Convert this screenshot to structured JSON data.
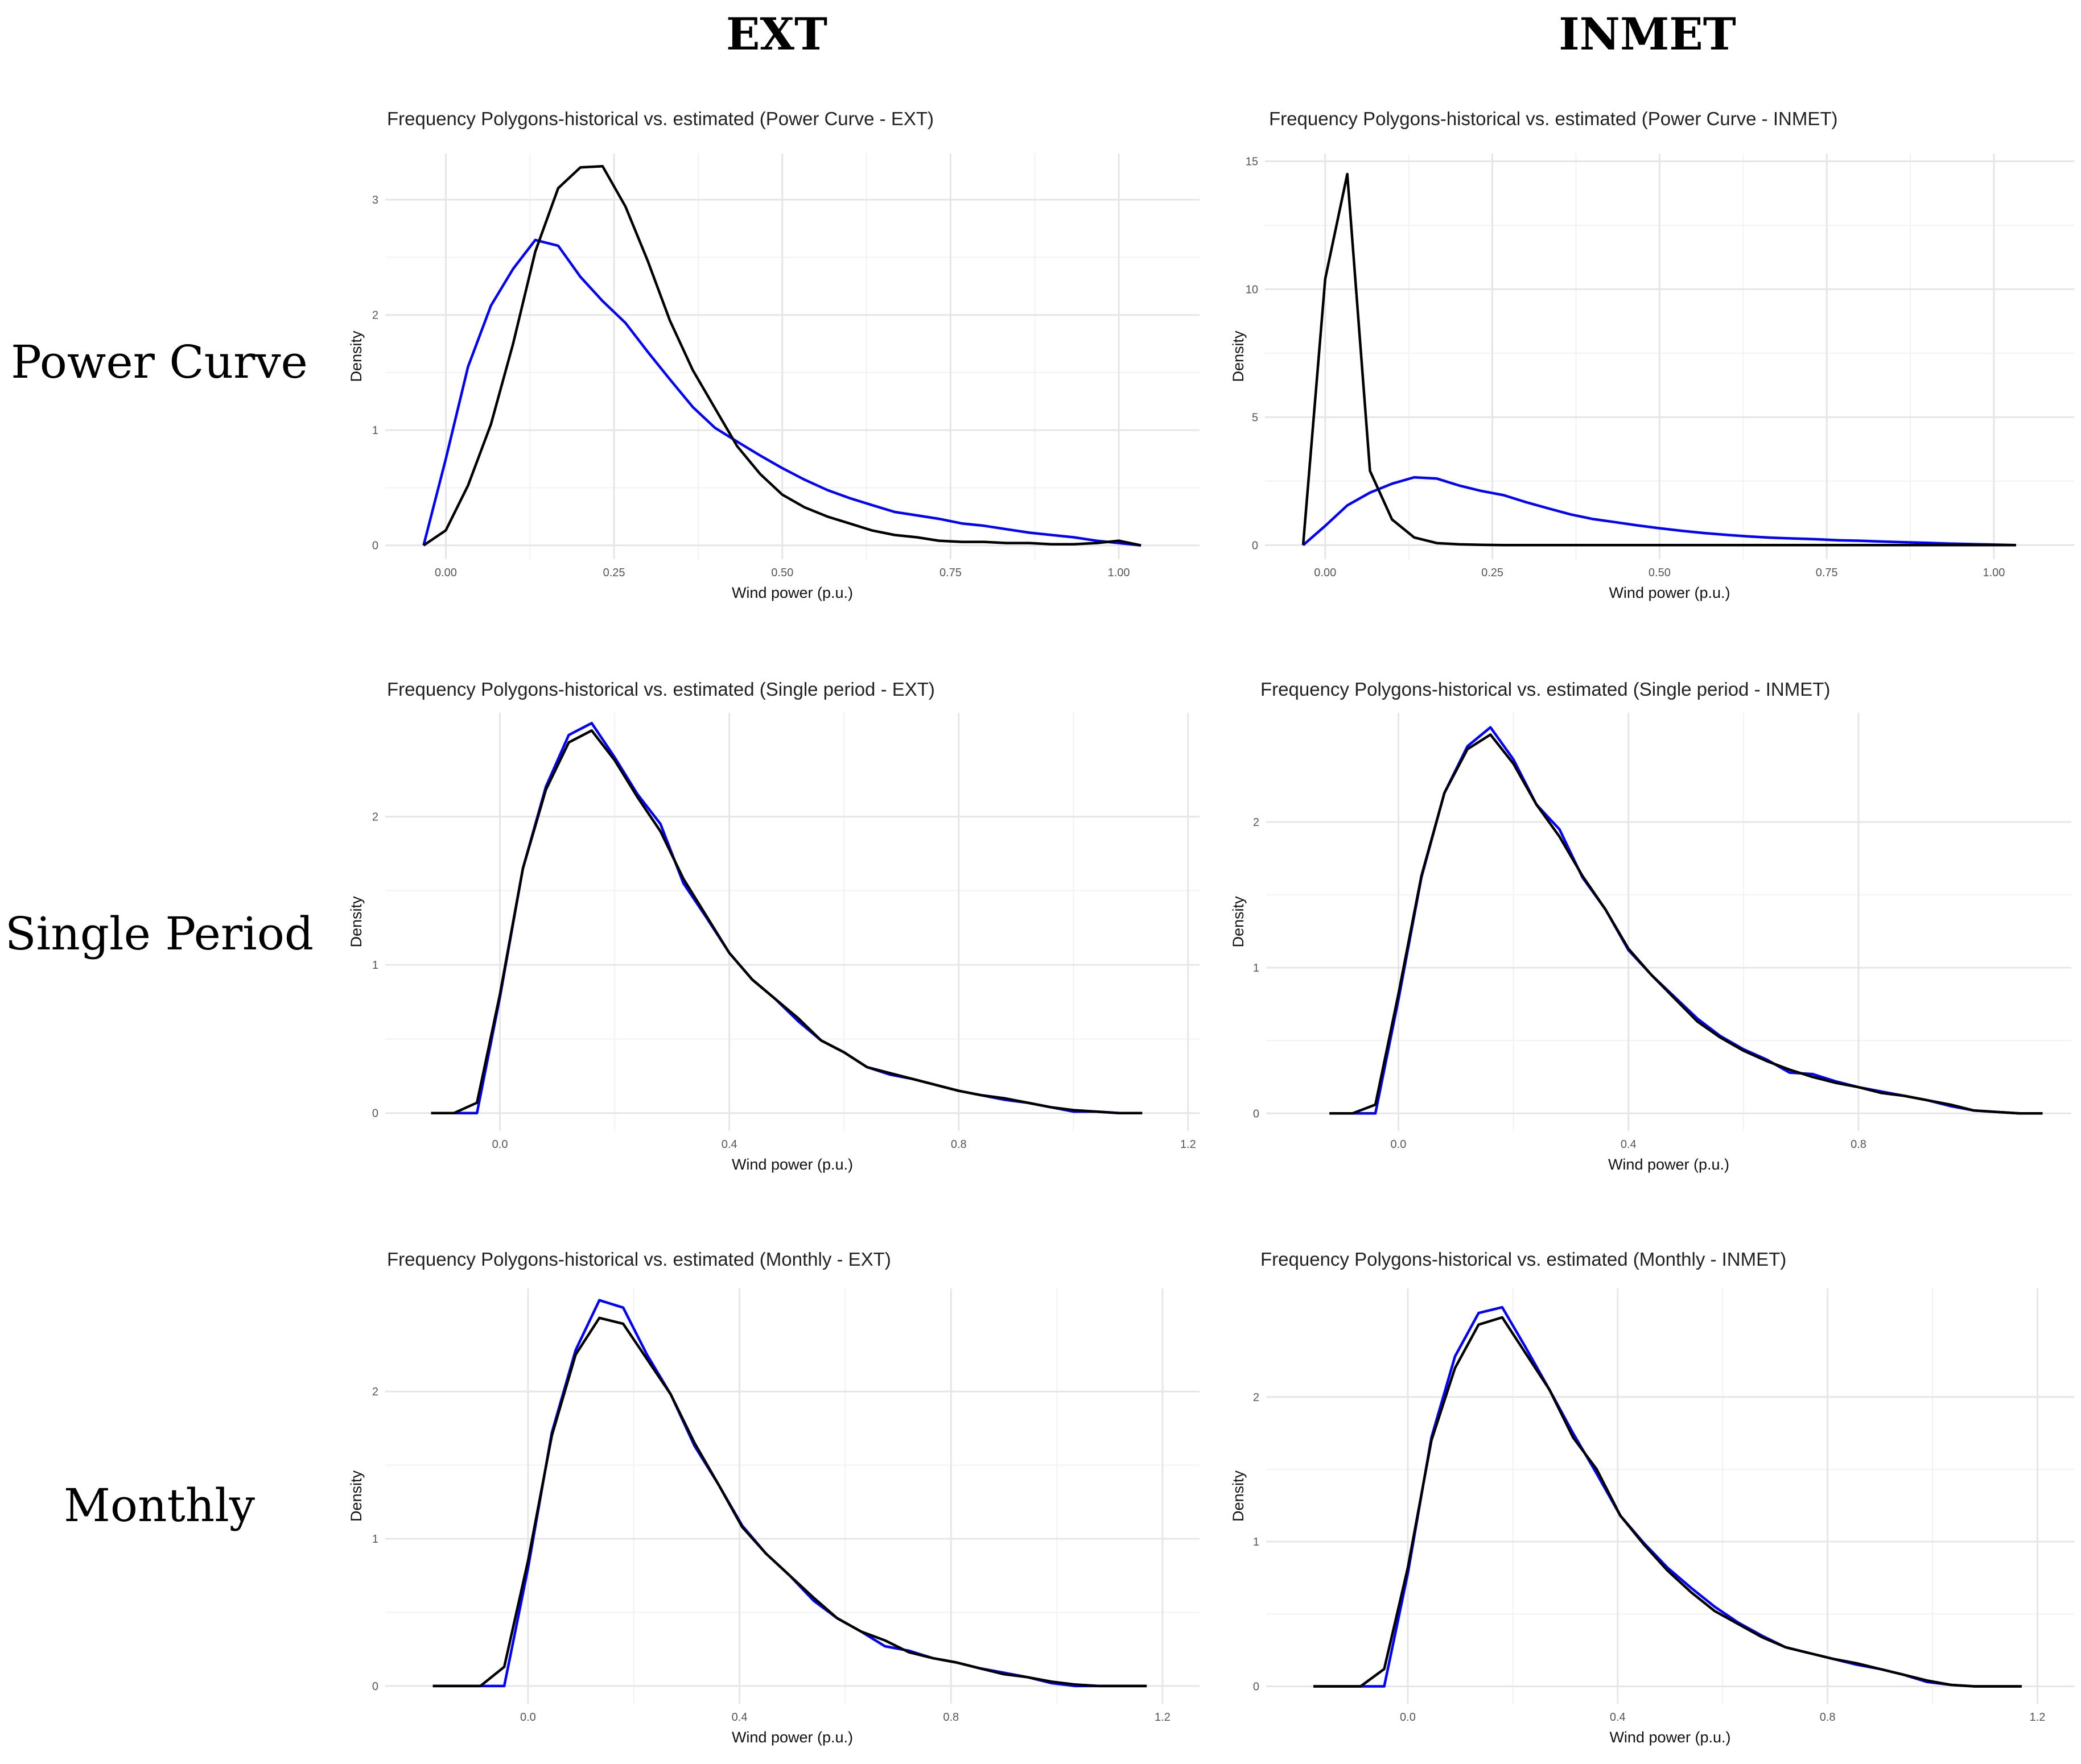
{
  "columns": [
    "EXT",
    "INMET"
  ],
  "rows": [
    "Power Curve",
    "Single Period",
    "Monthly"
  ],
  "colors": {
    "historical": "#000000",
    "estimated": "#0000ff",
    "grid": "#e6e6e6",
    "background": "#ffffff"
  },
  "chart_data": [
    {
      "type": "line",
      "title": "Frequency Polygons-historical vs. estimated (Power Curve - EXT)",
      "xlabel": "Wind power (p.u.)",
      "ylabel": "Density",
      "xlim": [
        -0.09,
        1.12
      ],
      "ylim": [
        -0.12,
        3.4
      ],
      "xticks": [
        0,
        0.25,
        0.5,
        0.75,
        1.0
      ],
      "xtick_labels": [
        "0.00",
        "0.25",
        "0.50",
        "0.75",
        "1.00"
      ],
      "yticks": [
        0,
        1,
        2,
        3
      ],
      "ytick_labels": [
        "0",
        "1",
        "2",
        "3"
      ],
      "series": [
        {
          "name": "estimated",
          "color": "#0000ff",
          "x": [
            -0.033,
            0.0,
            0.033,
            0.067,
            0.1,
            0.133,
            0.167,
            0.2,
            0.233,
            0.267,
            0.3,
            0.333,
            0.367,
            0.4,
            0.433,
            0.467,
            0.5,
            0.533,
            0.567,
            0.6,
            0.633,
            0.667,
            0.7,
            0.733,
            0.767,
            0.8,
            0.833,
            0.867,
            0.9,
            0.933,
            0.967,
            1.0,
            1.033
          ],
          "y": [
            0.0,
            0.75,
            1.55,
            2.08,
            2.4,
            2.65,
            2.6,
            2.33,
            2.12,
            1.93,
            1.68,
            1.44,
            1.2,
            1.02,
            0.9,
            0.78,
            0.67,
            0.57,
            0.48,
            0.41,
            0.35,
            0.29,
            0.26,
            0.23,
            0.19,
            0.17,
            0.14,
            0.11,
            0.09,
            0.07,
            0.04,
            0.02,
            0.0
          ]
        },
        {
          "name": "historical",
          "color": "#000000",
          "x": [
            -0.033,
            0.0,
            0.033,
            0.067,
            0.1,
            0.133,
            0.167,
            0.2,
            0.233,
            0.267,
            0.3,
            0.333,
            0.367,
            0.4,
            0.433,
            0.467,
            0.5,
            0.533,
            0.567,
            0.6,
            0.633,
            0.667,
            0.7,
            0.733,
            0.767,
            0.8,
            0.833,
            0.867,
            0.9,
            0.933,
            0.967,
            1.0,
            1.033
          ],
          "y": [
            0.0,
            0.13,
            0.52,
            1.05,
            1.75,
            2.55,
            3.1,
            3.28,
            3.29,
            2.94,
            2.47,
            1.95,
            1.52,
            1.19,
            0.86,
            0.62,
            0.44,
            0.33,
            0.25,
            0.19,
            0.13,
            0.09,
            0.07,
            0.04,
            0.03,
            0.03,
            0.02,
            0.02,
            0.01,
            0.01,
            0.02,
            0.04,
            0.0
          ]
        }
      ]
    },
    {
      "type": "line",
      "title": "Frequency Polygons-historical vs. estimated (Power Curve - INMET)",
      "xlabel": "Wind power (p.u.)",
      "ylabel": "Density",
      "xlim": [
        -0.09,
        1.12
      ],
      "ylim": [
        -0.55,
        15.3
      ],
      "xticks": [
        0,
        0.25,
        0.5,
        0.75,
        1.0
      ],
      "xtick_labels": [
        "0.00",
        "0.25",
        "0.50",
        "0.75",
        "1.00"
      ],
      "yticks": [
        0,
        5,
        10,
        15
      ],
      "ytick_labels": [
        "0",
        "5",
        "10",
        "15"
      ],
      "series": [
        {
          "name": "estimated",
          "color": "#0000ff",
          "x": [
            -0.033,
            0.0,
            0.033,
            0.067,
            0.1,
            0.133,
            0.167,
            0.2,
            0.233,
            0.267,
            0.3,
            0.333,
            0.367,
            0.4,
            0.433,
            0.467,
            0.5,
            0.533,
            0.567,
            0.6,
            0.633,
            0.667,
            0.7,
            0.733,
            0.767,
            0.8,
            0.833,
            0.867,
            0.9,
            0.933,
            0.967,
            1.0,
            1.033
          ],
          "y": [
            0.0,
            0.75,
            1.55,
            2.05,
            2.4,
            2.65,
            2.6,
            2.33,
            2.12,
            1.95,
            1.68,
            1.44,
            1.2,
            1.02,
            0.9,
            0.77,
            0.66,
            0.56,
            0.47,
            0.4,
            0.34,
            0.29,
            0.26,
            0.23,
            0.19,
            0.17,
            0.14,
            0.11,
            0.09,
            0.06,
            0.04,
            0.02,
            0.0
          ]
        },
        {
          "name": "historical",
          "color": "#000000",
          "x": [
            -0.033,
            0.0,
            0.033,
            0.067,
            0.1,
            0.133,
            0.167,
            0.2,
            0.233,
            0.267,
            0.3,
            0.333,
            0.367,
            0.4,
            0.433,
            0.467,
            0.5,
            0.533,
            0.567,
            0.6,
            0.633,
            0.667,
            0.7,
            0.733,
            0.767,
            0.8,
            0.833,
            0.867,
            0.9,
            0.933,
            0.967,
            1.0,
            1.033
          ],
          "y": [
            0.0,
            10.4,
            14.5,
            2.9,
            1.0,
            0.3,
            0.08,
            0.03,
            0.01,
            0.0,
            0.0,
            0.0,
            0.0,
            0.0,
            0.0,
            0.0,
            0.0,
            0.0,
            0.0,
            0.0,
            0.0,
            0.0,
            0.0,
            0.0,
            0.0,
            0.0,
            0.0,
            0.0,
            0.0,
            0.0,
            0.0,
            0.0,
            0.0
          ]
        }
      ]
    },
    {
      "type": "line",
      "title": "Frequency Polygons-historical vs. estimated (Single period - EXT)",
      "xlabel": "Wind power (p.u.)",
      "ylabel": "Density",
      "xlim": [
        -0.2,
        1.22
      ],
      "ylim": [
        -0.12,
        2.7
      ],
      "xticks": [
        0.0,
        0.4,
        0.8,
        1.2
      ],
      "xtick_labels": [
        "0.0",
        "0.4",
        "0.8",
        "1.2"
      ],
      "yticks": [
        0,
        1,
        2
      ],
      "ytick_labels": [
        "0",
        "1",
        "2"
      ],
      "series": [
        {
          "name": "estimated",
          "color": "#0000ff",
          "x": [
            -0.12,
            -0.08,
            -0.04,
            0.0,
            0.04,
            0.08,
            0.12,
            0.16,
            0.2,
            0.24,
            0.28,
            0.32,
            0.36,
            0.4,
            0.44,
            0.48,
            0.52,
            0.56,
            0.6,
            0.64,
            0.68,
            0.72,
            0.76,
            0.8,
            0.84,
            0.88,
            0.92,
            0.96,
            1.0,
            1.04,
            1.08,
            1.12
          ],
          "y": [
            0.0,
            0.0,
            0.0,
            0.78,
            1.65,
            2.2,
            2.55,
            2.63,
            2.4,
            2.15,
            1.95,
            1.55,
            1.32,
            1.08,
            0.9,
            0.77,
            0.62,
            0.49,
            0.41,
            0.31,
            0.26,
            0.23,
            0.19,
            0.15,
            0.12,
            0.09,
            0.07,
            0.04,
            0.01,
            0.01,
            0.0,
            0.0
          ]
        },
        {
          "name": "historical",
          "color": "#000000",
          "x": [
            -0.12,
            -0.08,
            -0.04,
            0.0,
            0.04,
            0.08,
            0.12,
            0.16,
            0.2,
            0.24,
            0.28,
            0.32,
            0.36,
            0.4,
            0.44,
            0.48,
            0.52,
            0.56,
            0.6,
            0.64,
            0.68,
            0.72,
            0.76,
            0.8,
            0.84,
            0.88,
            0.92,
            0.96,
            1.0,
            1.04,
            1.08,
            1.12
          ],
          "y": [
            0.0,
            0.0,
            0.07,
            0.8,
            1.65,
            2.18,
            2.5,
            2.58,
            2.38,
            2.13,
            1.9,
            1.58,
            1.33,
            1.08,
            0.9,
            0.77,
            0.64,
            0.49,
            0.41,
            0.31,
            0.27,
            0.23,
            0.19,
            0.15,
            0.12,
            0.1,
            0.07,
            0.04,
            0.02,
            0.01,
            0.0,
            0.0
          ]
        }
      ]
    },
    {
      "type": "line",
      "title": "Frequency Polygons-historical vs. estimated (Single period - INMET)",
      "xlabel": "Wind power (p.u.)",
      "ylabel": "Density",
      "xlim": [
        -0.23,
        1.17
      ],
      "ylim": [
        -0.12,
        2.75
      ],
      "xticks": [
        0.0,
        0.4,
        0.8
      ],
      "xtick_labels": [
        "0.0",
        "0.4",
        "0.8"
      ],
      "yticks": [
        0,
        1,
        2
      ],
      "ytick_labels": [
        "0",
        "1",
        "2"
      ],
      "series": [
        {
          "name": "estimated",
          "color": "#0000ff",
          "x": [
            -0.12,
            -0.08,
            -0.04,
            0.0,
            0.04,
            0.08,
            0.12,
            0.16,
            0.2,
            0.24,
            0.28,
            0.32,
            0.36,
            0.4,
            0.44,
            0.48,
            0.52,
            0.56,
            0.6,
            0.64,
            0.68,
            0.72,
            0.76,
            0.8,
            0.84,
            0.88,
            0.92,
            0.96,
            1.0,
            1.04,
            1.08,
            1.12
          ],
          "y": [
            0.0,
            0.0,
            0.0,
            0.78,
            1.62,
            2.2,
            2.52,
            2.65,
            2.43,
            2.12,
            1.95,
            1.62,
            1.4,
            1.12,
            0.95,
            0.8,
            0.65,
            0.53,
            0.44,
            0.37,
            0.28,
            0.27,
            0.22,
            0.18,
            0.15,
            0.12,
            0.09,
            0.05,
            0.02,
            0.01,
            0.0,
            0.0
          ]
        },
        {
          "name": "historical",
          "color": "#000000",
          "x": [
            -0.12,
            -0.08,
            -0.04,
            0.0,
            0.04,
            0.08,
            0.12,
            0.16,
            0.2,
            0.24,
            0.28,
            0.32,
            0.36,
            0.4,
            0.44,
            0.48,
            0.52,
            0.56,
            0.6,
            0.64,
            0.68,
            0.72,
            0.76,
            0.8,
            0.84,
            0.88,
            0.92,
            0.96,
            1.0,
            1.04,
            1.08,
            1.12
          ],
          "y": [
            0.0,
            0.0,
            0.06,
            0.82,
            1.63,
            2.2,
            2.5,
            2.6,
            2.4,
            2.12,
            1.9,
            1.63,
            1.4,
            1.13,
            0.95,
            0.79,
            0.63,
            0.52,
            0.43,
            0.36,
            0.3,
            0.25,
            0.21,
            0.18,
            0.14,
            0.12,
            0.09,
            0.06,
            0.02,
            0.01,
            0.0,
            0.0
          ]
        }
      ]
    },
    {
      "type": "line",
      "title": "Frequency Polygons-historical vs. estimated (Monthly - EXT)",
      "xlabel": "Wind power (p.u.)",
      "ylabel": "Density",
      "xlim": [
        -0.27,
        1.27
      ],
      "ylim": [
        -0.12,
        2.7
      ],
      "xticks": [
        0.0,
        0.4,
        0.8,
        1.2
      ],
      "xtick_labels": [
        "0.0",
        "0.4",
        "0.8",
        "1.2"
      ],
      "yticks": [
        0,
        1,
        2
      ],
      "ytick_labels": [
        "0",
        "1",
        "2"
      ],
      "series": [
        {
          "name": "estimated",
          "color": "#0000ff",
          "x": [
            -0.18,
            -0.135,
            -0.09,
            -0.045,
            0.0,
            0.045,
            0.09,
            0.135,
            0.18,
            0.225,
            0.27,
            0.315,
            0.36,
            0.405,
            0.45,
            0.495,
            0.54,
            0.585,
            0.63,
            0.675,
            0.72,
            0.765,
            0.81,
            0.855,
            0.9,
            0.945,
            0.99,
            1.035,
            1.08,
            1.125,
            1.17
          ],
          "y": [
            0.0,
            0.0,
            0.0,
            0.0,
            0.8,
            1.72,
            2.28,
            2.62,
            2.57,
            2.25,
            1.98,
            1.63,
            1.37,
            1.09,
            0.9,
            0.75,
            0.58,
            0.46,
            0.37,
            0.27,
            0.24,
            0.19,
            0.16,
            0.12,
            0.09,
            0.06,
            0.02,
            0.0,
            0.0,
            0.0,
            0.0
          ]
        },
        {
          "name": "historical",
          "color": "#000000",
          "x": [
            -0.18,
            -0.135,
            -0.09,
            -0.045,
            0.0,
            0.045,
            0.09,
            0.135,
            0.18,
            0.225,
            0.27,
            0.315,
            0.36,
            0.405,
            0.45,
            0.495,
            0.54,
            0.585,
            0.63,
            0.675,
            0.72,
            0.765,
            0.81,
            0.855,
            0.9,
            0.945,
            0.99,
            1.035,
            1.08,
            1.125,
            1.17
          ],
          "y": [
            0.0,
            0.0,
            0.0,
            0.13,
            0.85,
            1.7,
            2.25,
            2.5,
            2.46,
            2.22,
            1.98,
            1.65,
            1.37,
            1.08,
            0.9,
            0.75,
            0.6,
            0.46,
            0.37,
            0.31,
            0.23,
            0.19,
            0.16,
            0.12,
            0.08,
            0.06,
            0.03,
            0.01,
            0.0,
            0.0,
            0.0
          ]
        }
      ]
    },
    {
      "type": "line",
      "title": "Frequency Polygons-historical vs. estimated (Monthly - INMET)",
      "xlabel": "Wind power (p.u.)",
      "ylabel": "Density",
      "xlim": [
        -0.27,
        1.27
      ],
      "ylim": [
        -0.12,
        2.75
      ],
      "xticks": [
        0.0,
        0.4,
        0.8,
        1.2
      ],
      "xtick_labels": [
        "0.0",
        "0.4",
        "0.8",
        "1.2"
      ],
      "yticks": [
        0,
        1,
        2
      ],
      "ytick_labels": [
        "0",
        "1",
        "2"
      ],
      "series": [
        {
          "name": "estimated",
          "color": "#0000ff",
          "x": [
            -0.18,
            -0.135,
            -0.09,
            -0.045,
            0.0,
            0.045,
            0.09,
            0.135,
            0.18,
            0.225,
            0.27,
            0.315,
            0.36,
            0.405,
            0.45,
            0.495,
            0.54,
            0.585,
            0.63,
            0.675,
            0.72,
            0.765,
            0.81,
            0.855,
            0.9,
            0.945,
            0.99,
            1.035,
            1.08,
            1.125,
            1.17
          ],
          "y": [
            0.0,
            0.0,
            0.0,
            0.0,
            0.78,
            1.72,
            2.28,
            2.58,
            2.62,
            2.34,
            2.05,
            1.75,
            1.47,
            1.18,
            0.99,
            0.82,
            0.68,
            0.55,
            0.44,
            0.35,
            0.27,
            0.23,
            0.19,
            0.15,
            0.12,
            0.08,
            0.03,
            0.01,
            0.0,
            0.0,
            0.0
          ]
        },
        {
          "name": "historical",
          "color": "#000000",
          "x": [
            -0.18,
            -0.135,
            -0.09,
            -0.045,
            0.0,
            0.045,
            0.09,
            0.135,
            0.18,
            0.225,
            0.27,
            0.315,
            0.36,
            0.405,
            0.45,
            0.495,
            0.54,
            0.585,
            0.63,
            0.675,
            0.72,
            0.765,
            0.81,
            0.855,
            0.9,
            0.945,
            0.99,
            1.035,
            1.08,
            1.125,
            1.17
          ],
          "y": [
            0.0,
            0.0,
            0.0,
            0.12,
            0.82,
            1.7,
            2.2,
            2.5,
            2.55,
            2.3,
            2.05,
            1.72,
            1.5,
            1.18,
            0.98,
            0.8,
            0.65,
            0.52,
            0.43,
            0.34,
            0.27,
            0.23,
            0.19,
            0.16,
            0.12,
            0.08,
            0.04,
            0.01,
            0.0,
            0.0,
            0.0
          ]
        }
      ]
    }
  ]
}
